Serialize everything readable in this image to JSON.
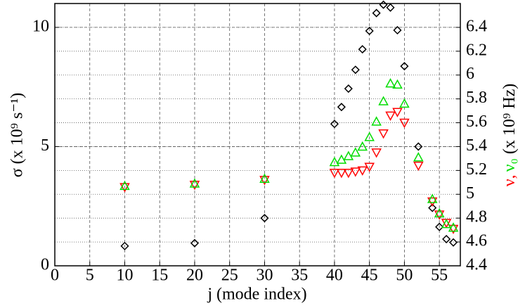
{
  "chart_data": {
    "type": "scatter",
    "xlabel": "j (mode index)",
    "ylabel": "σ (x 10⁹ s⁻¹)",
    "y2label": "(x 10⁹ Hz)",
    "y2label_join": ",",
    "x": [
      10,
      20,
      30,
      40,
      41,
      42,
      43,
      44,
      45,
      46,
      47,
      48,
      49,
      50,
      52,
      54,
      55,
      56,
      57
    ],
    "xlim": [
      0,
      58
    ],
    "xticks": [
      0,
      5,
      10,
      15,
      20,
      25,
      30,
      35,
      40,
      45,
      50,
      55
    ],
    "ylim": [
      0,
      11
    ],
    "yticks": [
      0,
      5,
      10
    ],
    "y2lim": [
      4.4,
      6.6
    ],
    "y2ticks": [
      4.4,
      4.6,
      4.8,
      5,
      5.2,
      5.4,
      5.6,
      5.8,
      6,
      6.2,
      6.4
    ],
    "grid": true,
    "series": [
      {
        "name": "σ",
        "color": "#000000",
        "marker": "diamond",
        "values": [
          0.83,
          0.95,
          2.0,
          5.95,
          6.66,
          7.43,
          8.22,
          9.08,
          9.85,
          10.6,
          10.95,
          10.83,
          9.88,
          8.37,
          5.0,
          2.43,
          1.63,
          1.12,
          0.98
        ]
      },
      {
        "name": "ν",
        "color": "#ff0000",
        "marker": "triangle-down",
        "axis": "y2",
        "values": [
          5.06,
          5.08,
          5.12,
          5.18,
          5.18,
          5.18,
          5.19,
          5.2,
          5.23,
          5.35,
          5.51,
          5.66,
          5.69,
          5.6,
          5.24,
          4.94,
          4.83,
          4.76,
          4.71
        ]
      },
      {
        "name": "ν₀",
        "color": "#00dd00",
        "marker": "triangle-up",
        "axis": "y2",
        "values": [
          5.07,
          5.09,
          5.13,
          5.27,
          5.29,
          5.32,
          5.35,
          5.4,
          5.48,
          5.61,
          5.78,
          5.93,
          5.92,
          5.76,
          5.31,
          4.96,
          4.84,
          4.75,
          4.72
        ]
      }
    ]
  }
}
